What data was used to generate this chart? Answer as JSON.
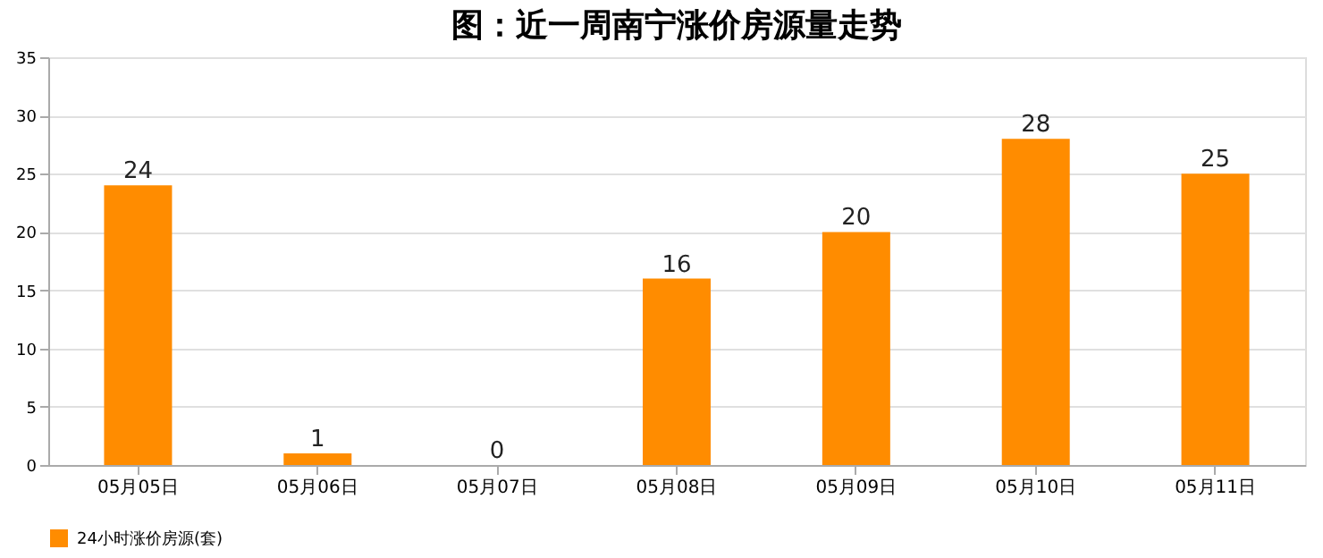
{
  "chart_data": {
    "type": "bar",
    "title": "图：近一周南宁涨价房源量走势",
    "categories": [
      "05月05日",
      "05月06日",
      "05月07日",
      "05月08日",
      "05月09日",
      "05月10日",
      "05月11日"
    ],
    "series": [
      {
        "name": "24小时涨价房源(套)",
        "color": "#ff8c00",
        "values": [
          24,
          1,
          0,
          16,
          20,
          28,
          25
        ]
      }
    ],
    "ylim": [
      0,
      35
    ],
    "yticks": [
      0,
      5,
      10,
      15,
      20,
      25,
      30,
      35
    ],
    "grid": "y",
    "legend": "bottom",
    "data_labels": true
  }
}
